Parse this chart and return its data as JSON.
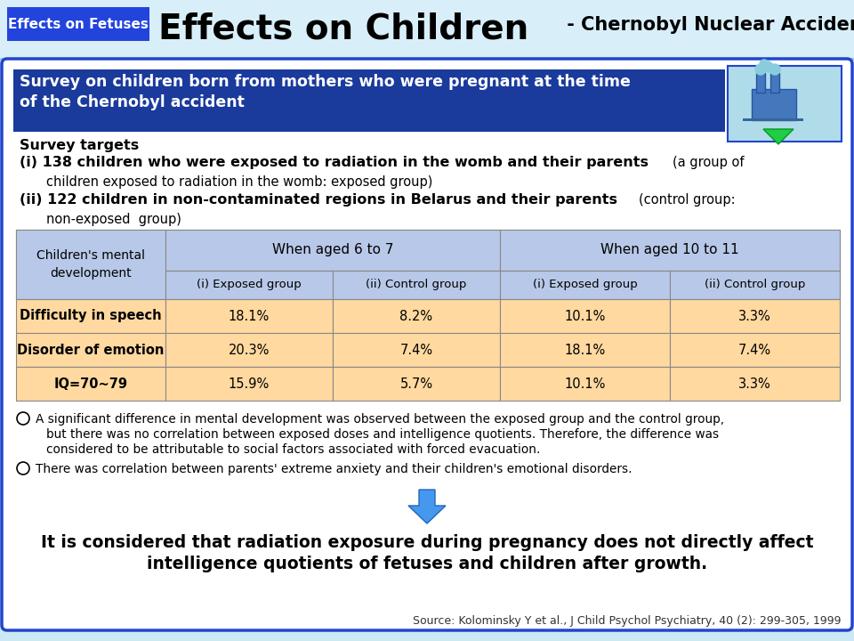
{
  "title_label": "Effects on Fetuses",
  "title_main": "Effects on Children",
  "title_sub": " - Chernobyl Nuclear Accident -",
  "bg_color": "#cce8f4",
  "header_bg": "#1a3a9c",
  "title_label_bg": "#2244dd",
  "survey_header_line1": "Survey on children born from mothers who were pregnant at the time",
  "survey_header_line2": "of the Chernobyl accident",
  "survey_target_title": "Survey targets",
  "item1_bold": "(i) 138 children who were exposed to radiation in the womb and their parents",
  "item1_normal": "(a group of",
  "item1_cont": "children exposed to radiation in the womb: exposed group)",
  "item2_bold": "(ii) 122 children in non-contaminated regions in Belarus and their parents",
  "item2_normal": "(control group:",
  "item2_cont": "non-exposed  group)",
  "col0_h1": "Children's mental\ndevelopment",
  "col12_h1": "When aged 6 to 7",
  "col34_h1": "When aged 10 to 11",
  "sub_headers": [
    "(i) Exposed group",
    "(ii) Control group",
    "(i) Exposed group",
    "(ii) Control group"
  ],
  "table_rows": [
    [
      "Difficulty in speech",
      "18.1%",
      "8.2%",
      "10.1%",
      "3.3%"
    ],
    [
      "Disorder of emotion",
      "20.3%",
      "7.4%",
      "18.1%",
      "7.4%"
    ],
    [
      "IQ=70∼79",
      "15.9%",
      "5.7%",
      "10.1%",
      "3.3%"
    ]
  ],
  "table_header_bg": "#b8c8e8",
  "table_row_bg": "#ffd9a0",
  "table_border": "#888888",
  "bullet1_line1": "A significant difference in mental development was observed between the exposed group and the control group,",
  "bullet1_line2": "but there was no correlation between exposed doses and intelligence quotients. Therefore, the difference was",
  "bullet1_line3": "considered to be attributable to social factors associated with forced evacuation.",
  "bullet2": "There was correlation between parents' extreme anxiety and their children's emotional disorders.",
  "conclusion_line1": "It is considered that radiation exposure during pregnancy does not directly affect",
  "conclusion_line2": "intelligence quotients of fetuses and children after growth.",
  "source": "Source: Kolominsky Y et al., J Child Psychol Psychiatry, 40 (2): 299-305, 1999",
  "border_color": "#2244cc",
  "arrow_color": "#4499ee",
  "white": "#ffffff",
  "black": "#000000"
}
